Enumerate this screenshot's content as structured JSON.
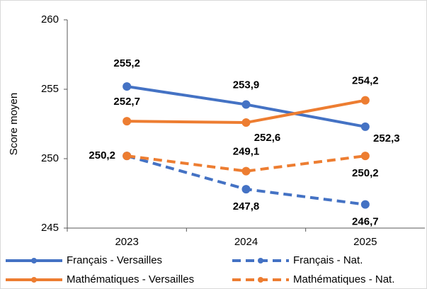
{
  "chart_data": {
    "type": "line",
    "y_label": "Score moyen",
    "categories": [
      "2023",
      "2024",
      "2025"
    ],
    "ylim": [
      245,
      260
    ],
    "yticks": [
      245,
      250,
      255,
      260
    ],
    "series": [
      {
        "name": "Français - Versailles",
        "color": "#4472c4",
        "dashed": false,
        "values": [
          255.2,
          253.9,
          252.3
        ],
        "value_labels": [
          "255,2",
          "253,9",
          "252,3"
        ]
      },
      {
        "name": "Français - Nat.",
        "color": "#4472c4",
        "dashed": true,
        "values": [
          250.2,
          247.8,
          246.7
        ],
        "value_labels": [
          "250,2",
          "247,8",
          "246,7"
        ]
      },
      {
        "name": "Mathématiques - Versailles",
        "color": "#ed7d31",
        "dashed": false,
        "values": [
          252.7,
          252.6,
          254.2
        ],
        "value_labels": [
          "252,7",
          "252,6",
          "254,2"
        ]
      },
      {
        "name": "Mathématiques - Nat.",
        "color": "#ed7d31",
        "dashed": true,
        "values": [
          250.2,
          249.1,
          250.2
        ],
        "value_labels": [
          null,
          "249,1",
          "250,2"
        ]
      }
    ]
  }
}
